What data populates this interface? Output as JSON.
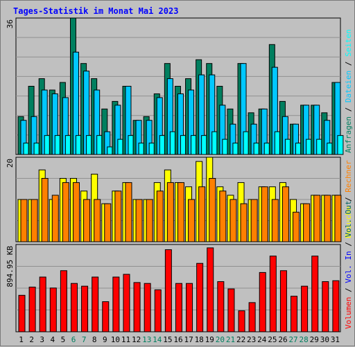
{
  "chart_data": {
    "type": "bar",
    "title": "Tages-Statistik im Monat Mai 2023",
    "days": [
      "1",
      "2",
      "3",
      "4",
      "5",
      "6",
      "7",
      "8",
      "9",
      "10",
      "11",
      "12",
      "13",
      "14",
      "15",
      "16",
      "17",
      "18",
      "19",
      "20",
      "21",
      "22",
      "23",
      "24",
      "25",
      "26",
      "27",
      "28",
      "29",
      "30",
      "31"
    ],
    "weekend_days": [
      "6",
      "7",
      "13",
      "14",
      "20",
      "21",
      "27",
      "28"
    ],
    "colors": {
      "title": "#0000ff",
      "weekday": "#000000",
      "weekend": "#007f5f",
      "anfragen": "#007f5f",
      "dateien": "#00c8ff",
      "seiten": "#00ffff",
      "besuche": "#ffff00",
      "rechner": "#ff8000",
      "volumen": "#ff0000",
      "vol_in": "#0000ff",
      "vol_out": "#006060",
      "grid": "#909090",
      "axis": "#000000"
    },
    "panels": {
      "top": {
        "ymax_label": "36",
        "ymax": 36,
        "legend": [
          {
            "text": "Anfragen",
            "color": "#007f5f"
          },
          {
            "text": "Dateien",
            "color": "#00c8ff"
          },
          {
            "text": "Seiten",
            "color": "#00ffff"
          }
        ],
        "separator": "/",
        "series": [
          {
            "name": "Anfragen",
            "values": [
              10,
              18,
              20,
              17,
              19,
              36,
              24,
              20,
              12,
              14,
              18,
              9,
              10,
              16,
              24,
              18,
              20,
              25,
              24,
              18,
              12,
              24,
              11,
              12,
              29,
              14,
              8,
              13,
              13,
              11,
              19
            ]
          },
          {
            "name": "Dateien",
            "values": [
              9,
              10,
              17,
              16,
              15,
              27,
              22,
              17,
              6,
              13,
              18,
              9,
              9,
              15,
              20,
              16,
              17,
              21,
              21,
              13,
              8,
              24,
              8,
              12,
              23,
              10,
              8,
              13,
              13,
              9,
              19
            ]
          },
          {
            "name": "Seiten",
            "values": [
              3,
              3,
              5,
              5,
              5,
              5,
              5,
              5,
              2,
              4,
              5,
              3,
              3,
              5,
              6,
              5,
              5,
              5,
              6,
              4,
              3,
              6,
              3,
              3,
              6,
              4,
              3,
              4,
              4,
              3,
              5
            ]
          }
        ]
      },
      "middle": {
        "ymax_label": "20",
        "ymax": 20,
        "legend": [
          {
            "text": "Besuche",
            "color": "#ffff00"
          },
          {
            "text": "Rechner",
            "color": "#ff8000"
          }
        ],
        "separator": "/",
        "series": [
          {
            "name": "Besuche",
            "values": [
              10,
              10,
              17,
              10,
              15,
              15,
              12,
              16,
              9,
              12,
              14,
              10,
              10,
              14,
              17,
              14,
              13,
              19,
              20,
              13,
              11,
              14,
              10,
              13,
              13,
              14,
              10,
              9,
              11,
              11,
              11
            ]
          },
          {
            "name": "Rechner",
            "values": [
              10,
              10,
              15,
              11,
              14,
              14,
              10,
              10,
              9,
              12,
              14,
              10,
              10,
              12,
              14,
              14,
              10,
              13,
              15,
              12,
              10,
              9,
              10,
              13,
              10,
              13,
              7,
              9,
              11,
              11,
              11
            ]
          }
        ]
      },
      "bottom": {
        "ymax_label": "894.95 KB",
        "legend": [
          {
            "text": "Volumen",
            "color": "#ff0000"
          },
          {
            "text": "Vol. In",
            "color": "#0000ff"
          },
          {
            "text": "Vol. Out",
            "color": "#006060"
          }
        ],
        "separator": "/",
        "series": [
          {
            "name": "Volumen",
            "values_kb": [
              400,
              490,
              600,
              480,
              670,
              530,
              500,
              600,
              330,
              600,
              630,
              540,
              530,
              460,
              900,
              530,
              530,
              750,
              920,
              550,
              470,
              230,
              320,
              650,
              830,
              670,
              390,
              500,
              830,
              550,
              560
            ]
          }
        ]
      }
    }
  }
}
